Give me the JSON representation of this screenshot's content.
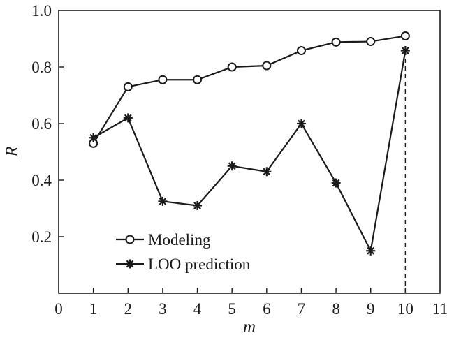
{
  "chart_data": {
    "type": "line",
    "xlabel": "m",
    "ylabel": "R",
    "xlim": [
      0,
      11
    ],
    "ylim": [
      0,
      1.0
    ],
    "xticks": [
      "0",
      "1",
      "2",
      "3",
      "4",
      "5",
      "6",
      "7",
      "8",
      "9",
      "10",
      "11"
    ],
    "yticks": [
      "0.2",
      "0.4",
      "0.6",
      "0.8",
      "1.0"
    ],
    "grid": false,
    "legend_position": "bottom-left",
    "series": [
      {
        "name": "Modeling",
        "marker": "circle",
        "color": "#1a1a1a",
        "x": [
          1,
          2,
          3,
          4,
          5,
          6,
          7,
          8,
          9,
          10
        ],
        "values": [
          0.53,
          0.73,
          0.755,
          0.755,
          0.8,
          0.805,
          0.858,
          0.888,
          0.89,
          0.91
        ]
      },
      {
        "name": "LOO prediction",
        "marker": "asterisk",
        "color": "#1a1a1a",
        "x": [
          1,
          2,
          3,
          4,
          5,
          6,
          7,
          8,
          9,
          10
        ],
        "values": [
          0.55,
          0.62,
          0.325,
          0.31,
          0.45,
          0.43,
          0.6,
          0.39,
          0.15,
          0.858
        ]
      }
    ],
    "reference_line": {
      "x": 10,
      "style": "dashed",
      "from_y": 0,
      "to_y": 0.858
    }
  }
}
